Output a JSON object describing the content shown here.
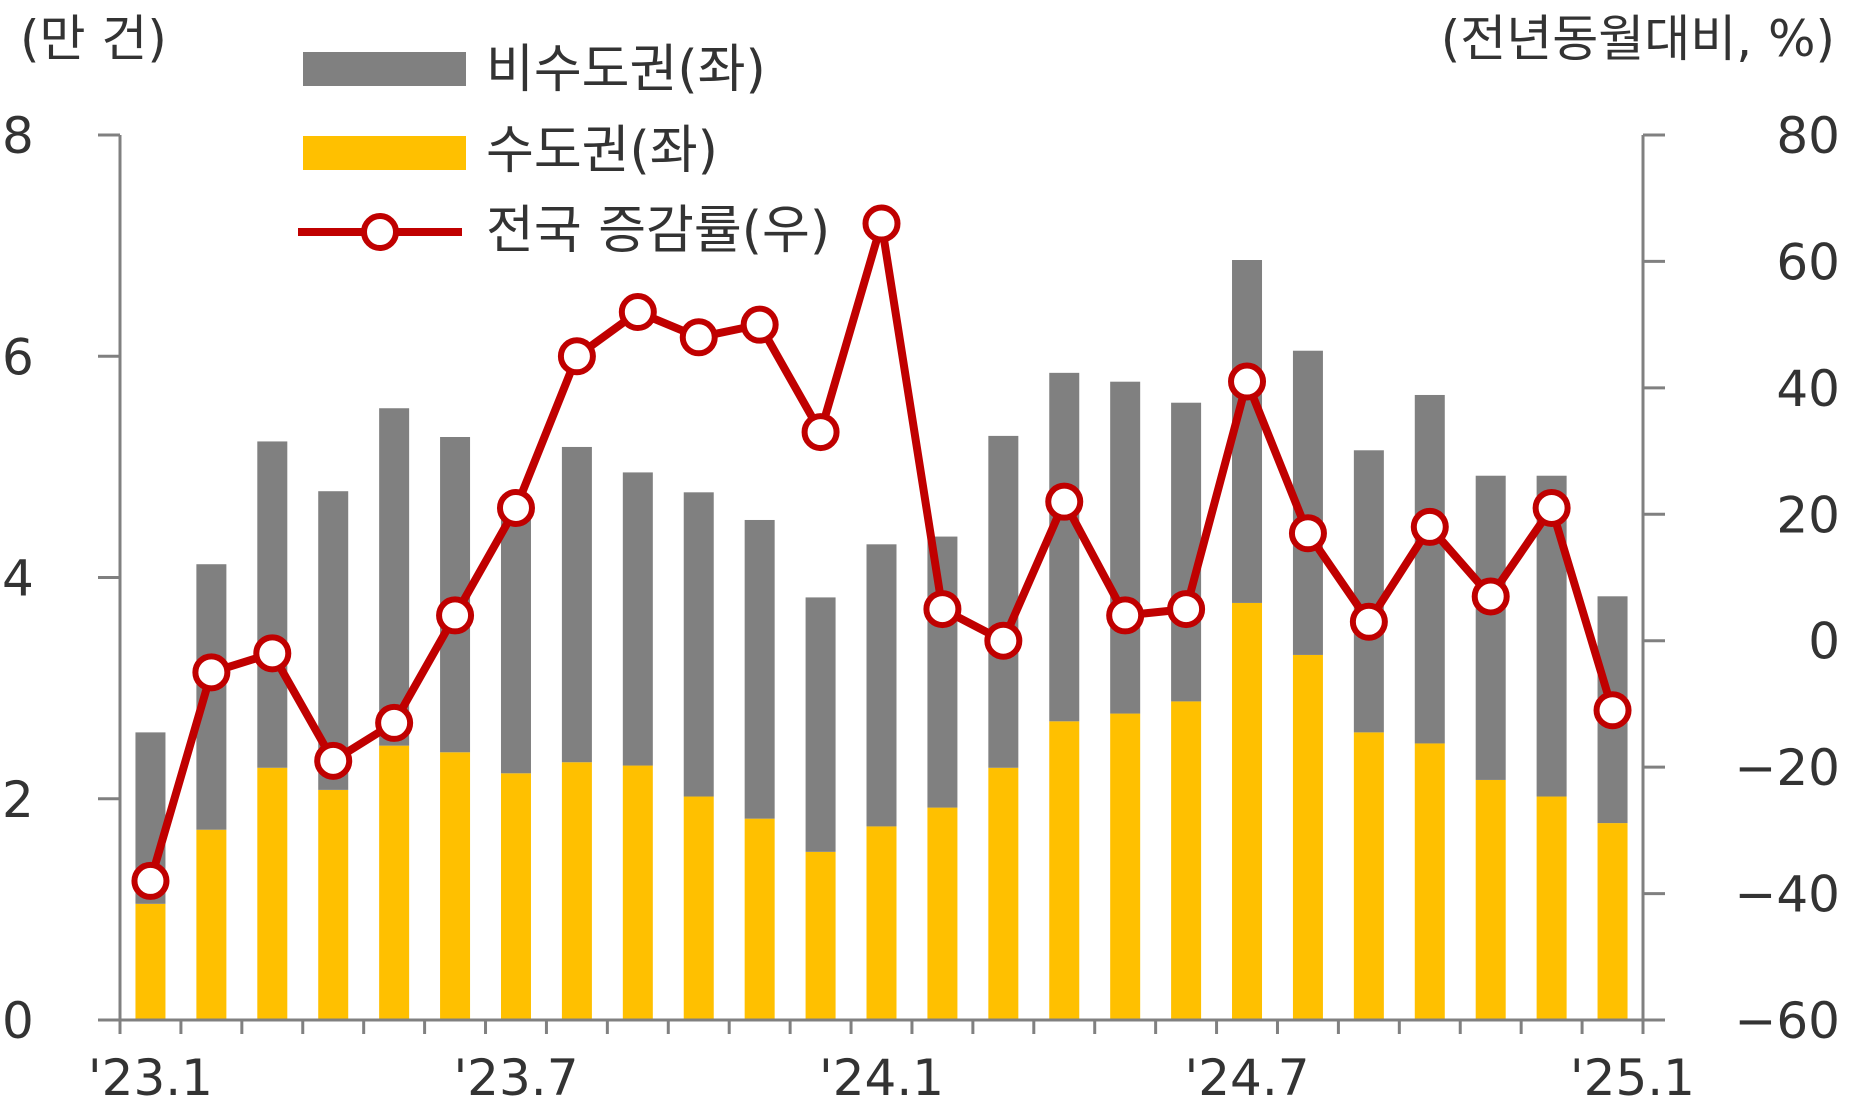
{
  "chart_data": {
    "type": "bar+line",
    "left_axis_unit": "(만 건)",
    "right_axis_unit": "(전년동월대비, %)",
    "left_ylim": [
      0,
      8
    ],
    "right_ylim": [
      -60,
      80
    ],
    "left_ticks": [
      "0",
      "2",
      "4",
      "6",
      "8"
    ],
    "right_ticks": [
      "−60",
      "−40",
      "−20",
      "0",
      "20",
      "40",
      "60",
      "80"
    ],
    "x_tick_labels": [
      {
        "index": 0,
        "label": "'23.1"
      },
      {
        "index": 6,
        "label": "'23.7"
      },
      {
        "index": 12,
        "label": "'24.1"
      },
      {
        "index": 18,
        "label": "'24.7"
      },
      {
        "index": 24,
        "label": "'25.1"
      }
    ],
    "series": [
      {
        "name": "비수도권(좌)",
        "kind": "bar-stacked",
        "color": "#808080",
        "values": [
          1.55,
          2.4,
          2.95,
          2.7,
          3.05,
          2.85,
          2.4,
          2.85,
          2.65,
          2.75,
          2.7,
          2.3,
          2.55,
          2.45,
          3.0,
          3.15,
          3.0,
          2.7,
          3.1,
          2.75,
          2.55,
          3.15,
          2.75,
          2.9,
          2.05
        ]
      },
      {
        "name": "수도권(좌)",
        "kind": "bar-stacked",
        "color": "#FFC000",
        "values": [
          1.05,
          1.72,
          2.28,
          2.08,
          2.48,
          2.42,
          2.23,
          2.33,
          2.3,
          2.02,
          1.82,
          1.52,
          1.75,
          1.92,
          2.28,
          2.7,
          2.77,
          2.88,
          3.77,
          3.3,
          2.6,
          2.5,
          2.17,
          2.02,
          1.78
        ]
      },
      {
        "name": "전국 증감률(우)",
        "kind": "line",
        "color": "#C00000",
        "axis": "right",
        "values": [
          -38,
          -5,
          -2,
          -19,
          -13,
          4,
          21,
          45,
          52,
          48,
          50,
          33,
          66,
          5,
          0,
          22,
          4,
          5,
          41,
          17,
          3,
          18,
          7,
          21,
          -11
        ]
      }
    ],
    "legend": {
      "placement": "top-left",
      "items": [
        "비수도권(좌)",
        "수도권(좌)",
        "전국 증감률(우)"
      ]
    },
    "grid": false
  }
}
